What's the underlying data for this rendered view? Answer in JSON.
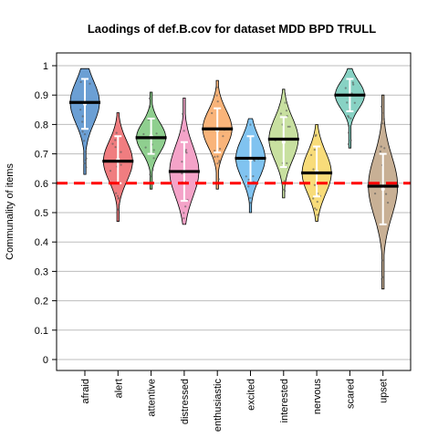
{
  "chart_data": {
    "type": "violin",
    "title": "Laodings of def.B.cov for dataset MDD BPD TRULL",
    "ylabel": "Communality of items",
    "xlabel": "",
    "ylim": [
      0,
      1
    ],
    "yticks": [
      "0",
      "0.1",
      "0.2",
      "0.3",
      "0.4",
      "0.5",
      "0.6",
      "0.7",
      "0.8",
      "0.9",
      "1"
    ],
    "grid": "horizontal",
    "reference_line": {
      "value": 0.6,
      "color": "#ff0000",
      "style": "dashed"
    },
    "categories": [
      "afraid",
      "alert",
      "attentive",
      "distressed",
      "enthusiastic",
      "excited",
      "interested",
      "nervous",
      "scared",
      "upset"
    ],
    "colors": [
      "#6b9fd4",
      "#f07d80",
      "#8fcf8f",
      "#f4a3c8",
      "#f9b47a",
      "#80c3f0",
      "#c8e0a0",
      "#f8dc7a",
      "#88d2c4",
      "#c8b095"
    ],
    "series": [
      {
        "category": "afraid",
        "min": 0.63,
        "max": 0.99,
        "median": 0.875,
        "mean": 0.87,
        "sd": 0.085
      },
      {
        "category": "alert",
        "min": 0.47,
        "max": 0.84,
        "median": 0.675,
        "mean": 0.68,
        "sd": 0.08
      },
      {
        "category": "attentive",
        "min": 0.58,
        "max": 0.91,
        "median": 0.755,
        "mean": 0.76,
        "sd": 0.06
      },
      {
        "category": "distressed",
        "min": 0.46,
        "max": 0.89,
        "median": 0.64,
        "mean": 0.64,
        "sd": 0.1
      },
      {
        "category": "enthusiastic",
        "min": 0.58,
        "max": 0.95,
        "median": 0.785,
        "mean": 0.78,
        "sd": 0.075
      },
      {
        "category": "excited",
        "min": 0.5,
        "max": 0.82,
        "median": 0.685,
        "mean": 0.68,
        "sd": 0.08
      },
      {
        "category": "interested",
        "min": 0.55,
        "max": 0.92,
        "median": 0.75,
        "mean": 0.74,
        "sd": 0.085
      },
      {
        "category": "nervous",
        "min": 0.47,
        "max": 0.8,
        "median": 0.635,
        "mean": 0.64,
        "sd": 0.085
      },
      {
        "category": "scared",
        "min": 0.72,
        "max": 0.99,
        "median": 0.9,
        "mean": 0.9,
        "sd": 0.055
      },
      {
        "category": "upset",
        "min": 0.24,
        "max": 0.9,
        "median": 0.59,
        "mean": 0.58,
        "sd": 0.12
      }
    ]
  }
}
